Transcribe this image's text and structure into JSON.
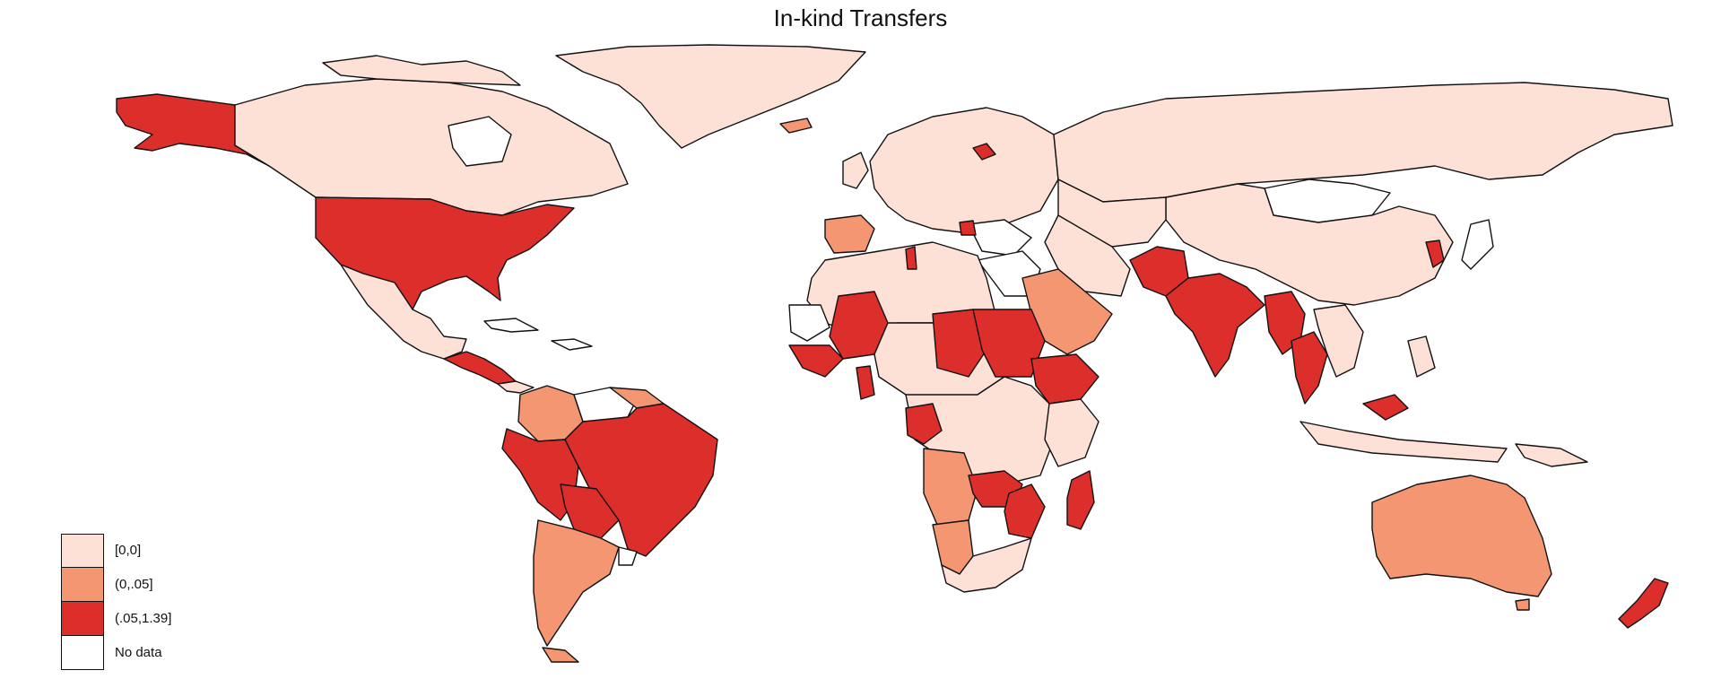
{
  "title": "In-kind Transfers",
  "legend": [
    {
      "label": "[0,0]",
      "color": "#fde0d6"
    },
    {
      "label": "(0,.05]",
      "color": "#f59673"
    },
    {
      "label": "(.05,1.39]",
      "color": "#dc2e2a"
    },
    {
      "label": "No data",
      "color": "#ffffff"
    }
  ]
}
